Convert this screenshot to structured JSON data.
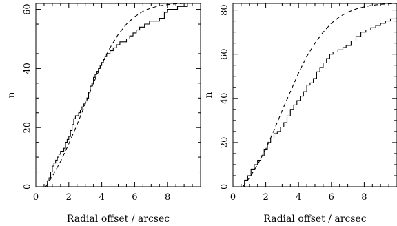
{
  "chart_data": [
    {
      "type": "line",
      "xlabel": "Radial offset / arcsec",
      "ylabel": "n",
      "xlim": [
        0,
        10
      ],
      "ylim": [
        0,
        62
      ],
      "xticks": [
        0,
        2,
        4,
        6,
        8
      ],
      "yticks": [
        0,
        20,
        40,
        60
      ],
      "series": [
        {
          "style": "solid-step",
          "x": [
            0.55,
            0.7,
            0.8,
            0.9,
            1.0,
            1.1,
            1.2,
            1.3,
            1.4,
            1.5,
            1.6,
            1.7,
            1.8,
            1.9,
            2.0,
            2.1,
            2.2,
            2.3,
            2.4,
            2.5,
            2.6,
            2.7,
            2.8,
            2.9,
            3.0,
            3.1,
            3.2,
            3.3,
            3.4,
            3.5,
            3.6,
            3.7,
            3.8,
            3.9,
            4.0,
            4.1,
            4.2,
            4.3,
            4.5,
            4.7,
            4.9,
            5.1,
            5.3,
            5.5,
            5.7,
            5.9,
            6.1,
            6.3,
            6.6,
            6.9,
            7.2,
            7.5,
            7.8,
            8.0,
            8.3,
            8.6,
            8.9,
            9.2,
            10.0
          ],
          "y": [
            0,
            2,
            3,
            5,
            7,
            8,
            9,
            10,
            11,
            12,
            12,
            13,
            15,
            16,
            17,
            19,
            21,
            23,
            24,
            24,
            25,
            26,
            27,
            28,
            29,
            30,
            32,
            34,
            35,
            37,
            38,
            39,
            40,
            41,
            42,
            43,
            44,
            45,
            46,
            47,
            48,
            49,
            49,
            50,
            51,
            52,
            53,
            54,
            55,
            56,
            56,
            57,
            59,
            60,
            60,
            61,
            61,
            62,
            62
          ]
        },
        {
          "style": "dashed",
          "x": [
            0.6,
            1.0,
            1.5,
            2.0,
            2.5,
            3.0,
            3.5,
            4.0,
            4.5,
            5.0,
            5.5,
            6.0,
            6.5,
            7.0,
            7.5,
            8.0,
            8.5,
            9.0,
            9.5,
            10.0
          ],
          "y": [
            0,
            3.5,
            8.5,
            14.5,
            21,
            28,
            35,
            41.5,
            47,
            51.5,
            55,
            57.5,
            59.3,
            60.5,
            61.2,
            61.6,
            61.85,
            62,
            62,
            62
          ]
        }
      ]
    },
    {
      "type": "line",
      "xlabel": "Radial offset / arcsec",
      "ylabel": "n",
      "xlim": [
        0,
        10
      ],
      "ylim": [
        0,
        83
      ],
      "xticks": [
        0,
        2,
        4,
        6,
        8
      ],
      "yticks": [
        0,
        20,
        40,
        60,
        80
      ],
      "series": [
        {
          "style": "solid-step",
          "x": [
            0.5,
            0.7,
            0.9,
            1.1,
            1.3,
            1.5,
            1.7,
            1.9,
            2.1,
            2.3,
            2.5,
            2.7,
            2.9,
            3.1,
            3.3,
            3.5,
            3.7,
            3.9,
            4.1,
            4.3,
            4.5,
            4.7,
            4.9,
            5.1,
            5.3,
            5.5,
            5.7,
            5.9,
            6.1,
            6.4,
            6.7,
            6.9,
            7.2,
            7.5,
            7.8,
            8.1,
            8.4,
            8.7,
            9.0,
            9.3,
            9.6,
            10.0
          ],
          "y": [
            0,
            3,
            5,
            8,
            10,
            12,
            14,
            17,
            20,
            22,
            24,
            25,
            27,
            29,
            32,
            35,
            37,
            39,
            41,
            43,
            46,
            47,
            49,
            52,
            54,
            56,
            58,
            60,
            61,
            62,
            63,
            64,
            66,
            68,
            70,
            71,
            72,
            73,
            74,
            75,
            76,
            77
          ]
        },
        {
          "style": "dashed",
          "x": [
            0.6,
            1.0,
            1.5,
            2.0,
            2.5,
            3.0,
            3.5,
            4.0,
            4.5,
            5.0,
            5.5,
            6.0,
            6.5,
            7.0,
            7.5,
            8.0,
            8.5,
            9.0,
            9.5,
            10.0
          ],
          "y": [
            0,
            4,
            10,
            17,
            25.5,
            34.5,
            43,
            51.5,
            59,
            65,
            70,
            74,
            77,
            79,
            80.5,
            81.5,
            82.2,
            82.6,
            82.8,
            83
          ]
        }
      ]
    }
  ]
}
